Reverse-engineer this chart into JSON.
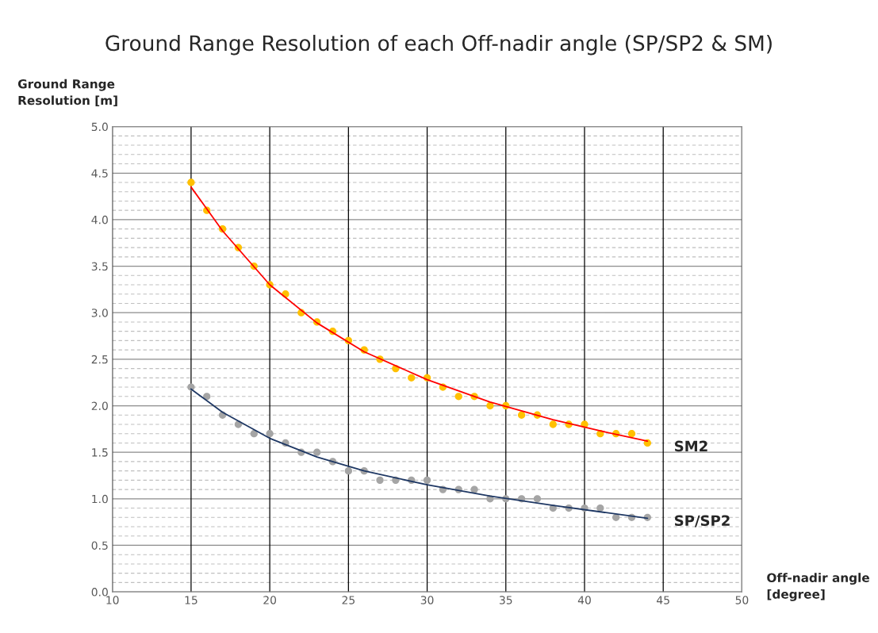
{
  "chart_data": {
    "type": "scatter",
    "title": "Ground Range Resolution of each Off-nadir angle (SP/SP2 & SM)",
    "xlabel": "Off-nadir angle\n[degree]",
    "ylabel": "Ground Range\nResolution [m]",
    "xlim": [
      10,
      50
    ],
    "xticks": [
      10,
      15,
      20,
      25,
      30,
      35,
      40,
      45,
      50
    ],
    "ylim": [
      0,
      5
    ],
    "yticks": [
      {
        "value": 0,
        "label": "0.0"
      },
      {
        "value": 0.5,
        "label": "0.5"
      },
      {
        "value": 1,
        "label": "1.0"
      },
      {
        "value": 1.5,
        "label": "1.5"
      },
      {
        "value": 2,
        "label": "2.0"
      },
      {
        "value": 2.5,
        "label": "2.5"
      },
      {
        "value": 3,
        "label": "3.0"
      },
      {
        "value": 3.5,
        "label": "3.5"
      },
      {
        "value": 4,
        "label": "4.0"
      },
      {
        "value": 4.5,
        "label": "4.5"
      },
      {
        "value": 5,
        "label": "5.0"
      }
    ],
    "grid": true,
    "x": [
      15,
      16,
      17,
      18,
      19,
      20,
      21,
      22,
      23,
      24,
      25,
      26,
      27,
      28,
      29,
      30,
      31,
      32,
      33,
      34,
      35,
      36,
      37,
      38,
      39,
      40,
      41,
      42,
      43,
      44
    ],
    "series": [
      {
        "name": "SM2",
        "color": "#ffc000",
        "marker": "circle",
        "values": [
          4.4,
          4.1,
          3.9,
          3.7,
          3.5,
          3.3,
          3.2,
          3.0,
          2.9,
          2.8,
          2.7,
          2.6,
          2.5,
          2.4,
          2.3,
          2.3,
          2.2,
          2.1,
          2.1,
          2.0,
          2.0,
          1.9,
          1.9,
          1.8,
          1.8,
          1.8,
          1.7,
          1.7,
          1.7,
          1.6
        ]
      },
      {
        "name": "SP/SP2",
        "color": "#a5a5a5",
        "marker": "circle",
        "values": [
          2.2,
          2.1,
          1.9,
          1.8,
          1.7,
          1.7,
          1.6,
          1.5,
          1.5,
          1.4,
          1.3,
          1.3,
          1.2,
          1.2,
          1.2,
          1.2,
          1.1,
          1.1,
          1.1,
          1.0,
          1.0,
          1.0,
          1.0,
          0.9,
          0.9,
          0.9,
          0.9,
          0.8,
          0.8,
          0.8
        ]
      },
      {
        "type": "line",
        "marker": "none",
        "color": "#ff0000",
        "x": [
          15,
          17,
          20,
          23,
          26,
          30,
          34,
          38,
          41,
          44
        ],
        "values": [
          4.35,
          3.88,
          3.3,
          2.89,
          2.58,
          2.28,
          2.04,
          1.85,
          1.73,
          1.62
        ]
      },
      {
        "type": "line",
        "marker": "none",
        "color": "#1f3864",
        "x": [
          15,
          17,
          20,
          23,
          26,
          30,
          34,
          38,
          41,
          44
        ],
        "values": [
          2.18,
          1.93,
          1.65,
          1.45,
          1.3,
          1.15,
          1.03,
          0.93,
          0.86,
          0.79
        ]
      }
    ]
  }
}
